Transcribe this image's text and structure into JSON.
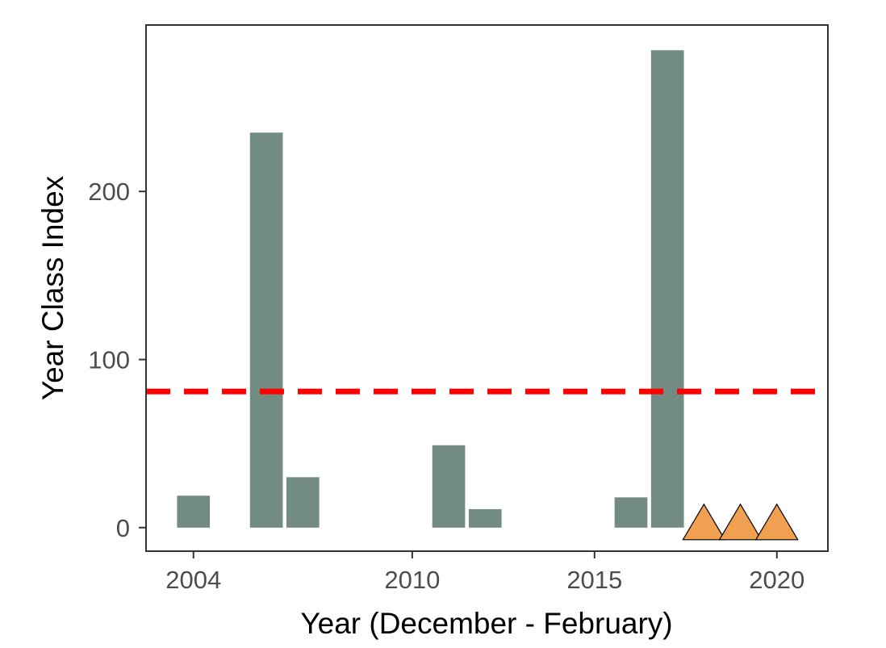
{
  "chart_data": {
    "type": "bar",
    "title": "",
    "xlabel": "Year (December - February)",
    "ylabel": "Year Class Index",
    "xlim": [
      2002.7,
      2021.4
    ],
    "ylim": [
      -14,
      299
    ],
    "x_ticks": [
      2004,
      2010,
      2015,
      2020
    ],
    "y_ticks": [
      0,
      100,
      200
    ],
    "grid": false,
    "legend": "none",
    "series": [
      {
        "x": [
          2004,
          2006,
          2007,
          2011,
          2012,
          2016,
          2017
        ],
        "values": [
          19,
          235,
          30,
          49,
          11,
          18,
          284
        ],
        "color": "#738c82"
      }
    ],
    "reference_line": {
      "y": 81,
      "style": "dashed",
      "color": "#ff0000"
    },
    "markers": {
      "shape": "triangle",
      "x": [
        2018,
        2019,
        2020
      ],
      "y": [
        0,
        0,
        0
      ],
      "color": "#f0a050"
    }
  }
}
